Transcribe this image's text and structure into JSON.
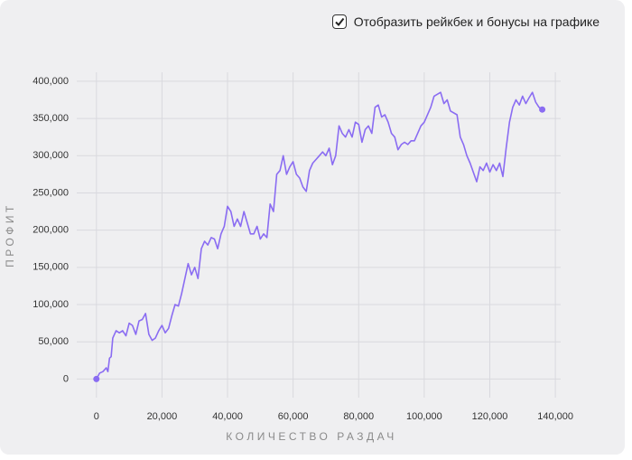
{
  "controls": {
    "rakeback_checkbox": {
      "label": "Отобразить рейкбек и бонусы на графике",
      "checked": true
    }
  },
  "chart_data": {
    "type": "line",
    "ylabel": "ПРОФИТ",
    "xlabel": "КОЛИЧЕСТВО РАЗДАЧ",
    "grid": true,
    "xlim": [
      -6000,
      143000
    ],
    "ylim": [
      -25000,
      412000
    ],
    "xticks": [
      0,
      {
        "value": 20000,
        "label": "20,000"
      },
      {
        "value": 40000,
        "label": "40,000"
      },
      {
        "value": 60000,
        "label": "60,000"
      },
      {
        "value": 80000,
        "label": "80,000"
      },
      {
        "value": 100000,
        "label": "100,000"
      },
      {
        "value": 120000,
        "label": "120,000"
      },
      {
        "value": 140000,
        "label": "140,000"
      }
    ],
    "yticks": [
      0,
      {
        "value": 50000,
        "label": "50,000"
      },
      {
        "value": 100000,
        "label": "100,000"
      },
      {
        "value": 150000,
        "label": "150,000"
      },
      {
        "value": 200000,
        "label": "200,000"
      },
      {
        "value": 250000,
        "label": "250,000"
      },
      {
        "value": 300000,
        "label": "300,000"
      },
      {
        "value": 350000,
        "label": "350,000"
      },
      {
        "value": 400000,
        "label": "400,000"
      }
    ],
    "x": [
      0,
      1000,
      2000,
      3000,
      3500,
      4000,
      4500,
      5000,
      6000,
      7000,
      8000,
      9000,
      10000,
      11000,
      12000,
      13000,
      14000,
      15000,
      16000,
      17000,
      18000,
      19000,
      20000,
      21000,
      22000,
      23000,
      24000,
      25000,
      26000,
      27000,
      28000,
      29000,
      30000,
      31000,
      32000,
      33000,
      34000,
      35000,
      36000,
      37000,
      38000,
      39000,
      40000,
      41000,
      42000,
      43000,
      44000,
      45000,
      46000,
      47000,
      48000,
      49000,
      50000,
      51000,
      52000,
      53000,
      54000,
      55000,
      56000,
      57000,
      58000,
      59000,
      60000,
      61000,
      62000,
      63000,
      64000,
      65000,
      66000,
      67000,
      68000,
      69000,
      70000,
      71000,
      72000,
      73000,
      74000,
      75000,
      76000,
      77000,
      78000,
      79000,
      80000,
      81000,
      82000,
      83000,
      84000,
      85000,
      86000,
      87000,
      88000,
      89000,
      90000,
      91000,
      92000,
      93000,
      94000,
      95000,
      96000,
      97000,
      98000,
      99000,
      100000,
      102000,
      103000,
      105000,
      106000,
      107000,
      108000,
      110000,
      111000,
      112000,
      113000,
      114000,
      116000,
      117000,
      118000,
      119000,
      120000,
      121000,
      122000,
      123000,
      124000,
      125000,
      126000,
      127000,
      128000,
      129000,
      130000,
      131000,
      132000,
      133000,
      134000,
      135000,
      136000
    ],
    "series": [
      {
        "name": "Профит",
        "color": "#8a6cf2",
        "values": [
          0,
          8000,
          10000,
          15000,
          10000,
          28000,
          30000,
          55000,
          65000,
          62000,
          65000,
          58000,
          75000,
          72000,
          60000,
          78000,
          80000,
          88000,
          60000,
          52000,
          55000,
          65000,
          72000,
          62000,
          68000,
          85000,
          100000,
          98000,
          115000,
          135000,
          155000,
          140000,
          150000,
          135000,
          175000,
          185000,
          180000,
          190000,
          188000,
          175000,
          195000,
          205000,
          232000,
          225000,
          205000,
          215000,
          205000,
          225000,
          210000,
          195000,
          195000,
          205000,
          188000,
          195000,
          190000,
          235000,
          225000,
          275000,
          280000,
          300000,
          275000,
          285000,
          292000,
          275000,
          270000,
          258000,
          252000,
          280000,
          290000,
          295000,
          300000,
          305000,
          300000,
          310000,
          288000,
          300000,
          340000,
          330000,
          325000,
          335000,
          325000,
          345000,
          342000,
          318000,
          335000,
          340000,
          330000,
          365000,
          368000,
          352000,
          355000,
          345000,
          330000,
          325000,
          308000,
          315000,
          318000,
          315000,
          320000,
          320000,
          330000,
          340000,
          345000,
          365000,
          380000,
          385000,
          370000,
          375000,
          360000,
          355000,
          325000,
          315000,
          300000,
          290000,
          265000,
          285000,
          280000,
          290000,
          278000,
          288000,
          280000,
          290000,
          272000,
          310000,
          345000,
          365000,
          375000,
          368000,
          380000,
          370000,
          378000,
          385000,
          372000,
          365000,
          362000
        ]
      }
    ]
  }
}
